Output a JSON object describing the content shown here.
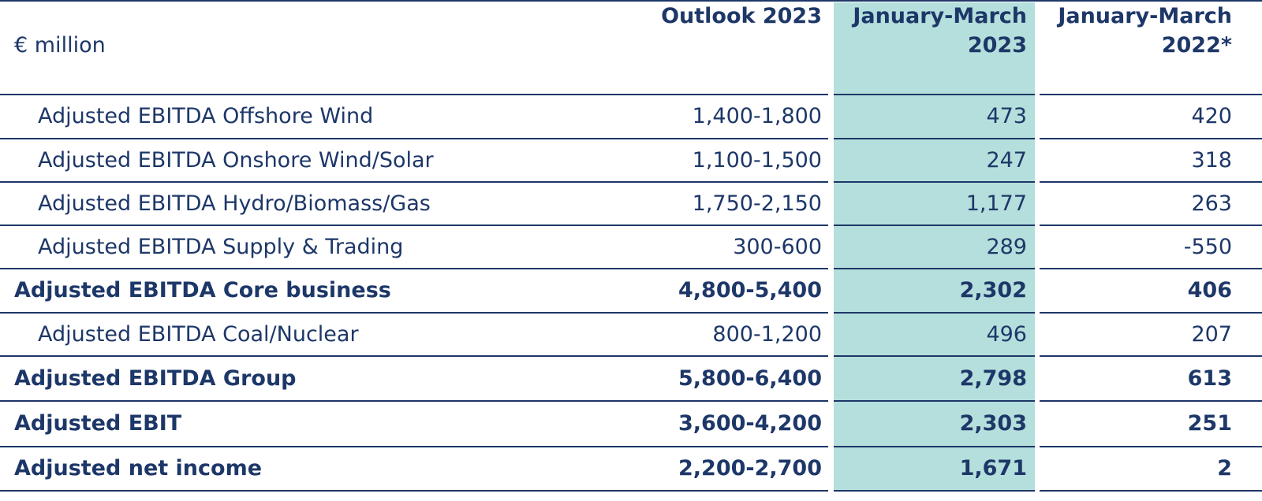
{
  "header": {
    "unit": "€ million",
    "columns": [
      "Outlook 2023",
      "January-March 2023",
      "January-March 2022*"
    ]
  },
  "table": {
    "rows": [
      {
        "label": "Adjusted EBITDA Offshore Wind",
        "values": [
          "1,400-1,800",
          "473",
          "420"
        ],
        "bold": false
      },
      {
        "label": "Adjusted EBITDA Onshore Wind/Solar",
        "values": [
          "1,100-1,500",
          "247",
          "318"
        ],
        "bold": false
      },
      {
        "label": "Adjusted EBITDA Hydro/Biomass/Gas",
        "values": [
          "1,750-2,150",
          "1,177",
          "263"
        ],
        "bold": false
      },
      {
        "label": "Adjusted EBITDA Supply & Trading",
        "values": [
          "300-600",
          "289",
          "-550"
        ],
        "bold": false
      },
      {
        "label": "Adjusted EBITDA Core business",
        "values": [
          "4,800-5,400",
          "2,302",
          "406"
        ],
        "bold": true
      },
      {
        "label": "Adjusted EBITDA Coal/Nuclear",
        "values": [
          "800-1,200",
          "496",
          "207"
        ],
        "bold": false
      },
      {
        "label": "Adjusted EBITDA Group",
        "values": [
          "5,800-6,400",
          "2,798",
          "613"
        ],
        "bold": true
      },
      {
        "label": "Adjusted EBIT",
        "values": [
          "3,600-4,200",
          "2,303",
          "251"
        ],
        "bold": true
      },
      {
        "label": "Adjusted net income",
        "values": [
          "2,200-2,700",
          "1,671",
          "2"
        ],
        "bold": true
      }
    ]
  }
}
